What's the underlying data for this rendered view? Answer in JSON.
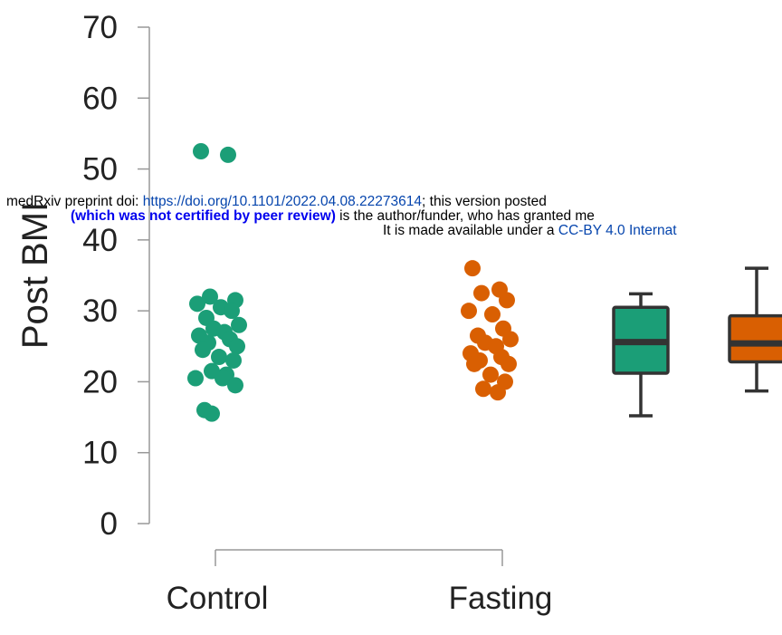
{
  "banner": {
    "line1_prefix": "medRxiv preprint doi: ",
    "line1_link": "https://doi.org/10.1101/2022.04.08.22273614",
    "line1_suffix": "; this version posted",
    "line2_bold": "(which was not certified by peer review)",
    "line2_rest": " is the author/funder, who has granted me",
    "line3_prefix": "It is made available under a ",
    "line3_link": "CC-BY 4.0 Internat"
  },
  "chart_data": {
    "type": "scatter",
    "title": "",
    "xlabel": "",
    "ylabel": "Post BMI",
    "ylim": [
      0,
      70
    ],
    "yticks": [
      0,
      10,
      20,
      30,
      40,
      50,
      60,
      70
    ],
    "categories": [
      "Control",
      "Fasting"
    ],
    "colors": {
      "Control": "#1b9e77",
      "Fasting": "#d95f02"
    },
    "series": [
      {
        "name": "Control",
        "values": [
          52.5,
          52.0,
          32.0,
          31.5,
          31.0,
          30.5,
          30.0,
          29.0,
          28.0,
          27.5,
          27.0,
          26.5,
          26.0,
          25.5,
          25.0,
          24.5,
          23.5,
          23.0,
          21.5,
          21.0,
          20.5,
          20.5,
          19.5,
          16.0,
          15.5
        ]
      },
      {
        "name": "Fasting",
        "values": [
          36.0,
          33.0,
          32.5,
          31.5,
          30.0,
          29.5,
          27.5,
          26.5,
          26.0,
          25.5,
          25.0,
          24.0,
          23.5,
          23.0,
          22.5,
          22.5,
          21.0,
          20.0,
          19.0,
          18.5
        ]
      }
    ],
    "boxplots": [
      {
        "name": "Control",
        "min": 15.2,
        "q1": 21.2,
        "median": 25.6,
        "q3": 30.5,
        "max": 32.4
      },
      {
        "name": "Fasting",
        "min": 18.7,
        "q1": 22.8,
        "median": 25.4,
        "q3": 29.3,
        "max": 36.0
      }
    ]
  }
}
